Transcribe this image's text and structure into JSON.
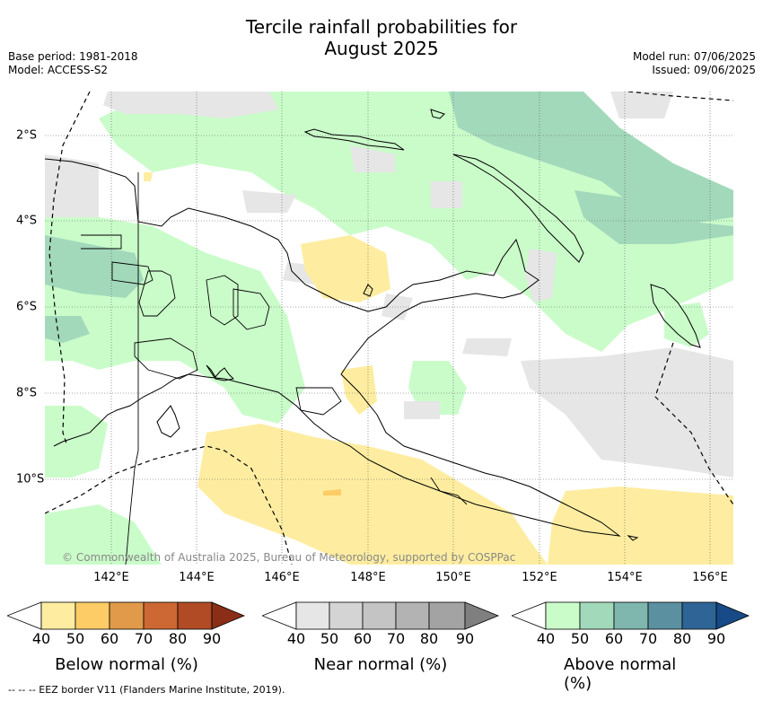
{
  "title_line1": "Tercile rainfall probabilities for",
  "title_line2": "August 2025",
  "base_period": "Base period: 1981-2018",
  "model": "Model: ACCESS-S2",
  "model_run": "Model run: 07/06/2025",
  "issued": "Issued: 09/06/2025",
  "copyright": "© Commonwealth of Australia 2025, Bureau of Meteorology, supported by COSPPac",
  "x_ticks": [
    "142°E",
    "144°E",
    "146°E",
    "148°E",
    "150°E",
    "152°E",
    "154°E",
    "156°E"
  ],
  "y_ticks": [
    "2°S",
    "4°S",
    "6°S",
    "8°S",
    "10°S"
  ],
  "legends": [
    {
      "title": "Below normal (%)",
      "labels": [
        "40",
        "50",
        "60",
        "70",
        "80",
        "90"
      ],
      "colors": [
        "#ffffff",
        "#feeda0",
        "#fdcc66",
        "#e09a4a",
        "#cd6733",
        "#b04b26",
        "#8b2e17"
      ]
    },
    {
      "title": "Near normal (%)",
      "labels": [
        "40",
        "50",
        "60",
        "70",
        "80",
        "90"
      ],
      "colors": [
        "#ffffff",
        "#e6e6e6",
        "#d4d4d4",
        "#c4c4c4",
        "#b3b3b3",
        "#a3a3a3",
        "#7f7f7f"
      ]
    },
    {
      "title": "Above normal (%)",
      "labels": [
        "40",
        "50",
        "60",
        "70",
        "80",
        "90"
      ],
      "colors": [
        "#ffffff",
        "#cafcca",
        "#a3d9bb",
        "#7fb6ae",
        "#5b90a1",
        "#2e6496",
        "#174a86"
      ]
    }
  ],
  "footer": "--  --  -- EEZ border V11 (Flanders Marine Institute, 2019)."
}
